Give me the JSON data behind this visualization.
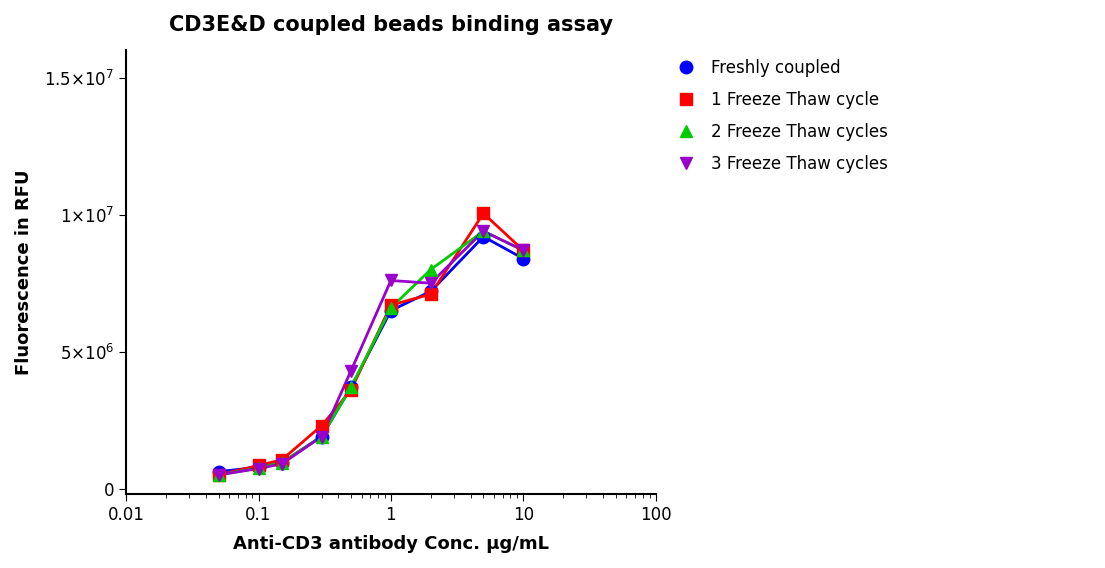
{
  "title": "CD3E&D coupled beads binding assay",
  "xlabel": "Anti-CD3 antibody Conc. µg/mL",
  "ylabel": "Fluorescence in RFU",
  "xlim": [
    0.01,
    100
  ],
  "ylim": [
    -200000.0,
    16000000.0
  ],
  "series": [
    {
      "label": "Freshly coupled",
      "color": "#0000FF",
      "marker": "o",
      "x": [
        0.05,
        0.1,
        0.15,
        0.3,
        0.5,
        1.0,
        2.0,
        5.0,
        10.0
      ],
      "y": [
        620000,
        780000,
        950000,
        1900000,
        3700000,
        6500000,
        7200000,
        9200000,
        8400000
      ]
    },
    {
      "label": "1 Freeze Thaw cycle",
      "color": "#FF0000",
      "marker": "s",
      "x": [
        0.05,
        0.1,
        0.15,
        0.3,
        0.5,
        1.0,
        2.0,
        5.0,
        10.0
      ],
      "y": [
        500000,
        850000,
        1050000,
        2300000,
        3600000,
        6700000,
        7100000,
        10050000,
        8700000
      ]
    },
    {
      "label": "2 Freeze Thaw cycles",
      "color": "#00CC00",
      "marker": "^",
      "x": [
        0.05,
        0.1,
        0.15,
        0.3,
        0.5,
        1.0,
        2.0,
        5.0,
        10.0
      ],
      "y": [
        500000,
        750000,
        950000,
        1900000,
        3700000,
        6600000,
        8000000,
        9400000,
        8700000
      ]
    },
    {
      "label": "3 Freeze Thaw cycles",
      "color": "#9900CC",
      "marker": "v",
      "x": [
        0.05,
        0.1,
        0.15,
        0.3,
        0.5,
        1.0,
        2.0,
        5.0,
        10.0
      ],
      "y": [
        500000,
        730000,
        900000,
        1900000,
        4300000,
        7600000,
        7500000,
        9400000,
        8700000
      ]
    }
  ],
  "title_fontsize": 15,
  "axis_label_fontsize": 13,
  "tick_fontsize": 12,
  "legend_fontsize": 12,
  "marker_size": 9,
  "linewidth": 2.0
}
